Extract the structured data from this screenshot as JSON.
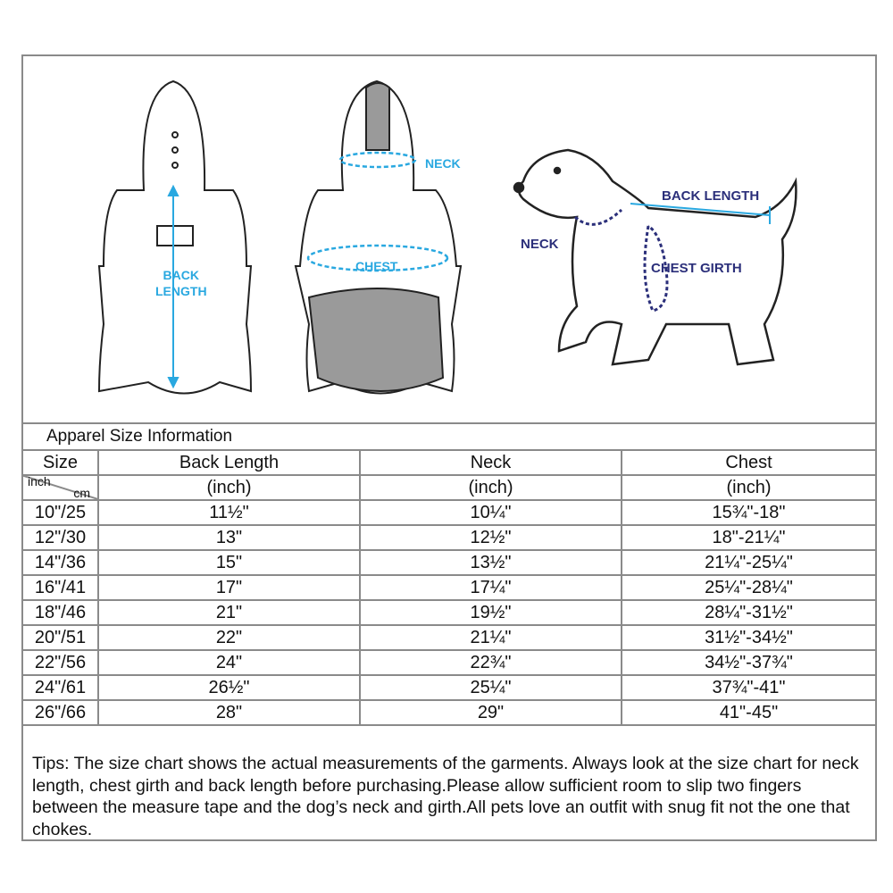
{
  "illustration": {
    "garment_labels": {
      "back_length": "BACK\nLENGTH",
      "back": "BACK",
      "length": "LENGTH",
      "neck": "NECK",
      "chest": "CHEST"
    },
    "dog_labels": {
      "back_length": "BACK LENGTH",
      "neck": "NECK",
      "chest_girth": "CHEST GIRTH"
    },
    "colors": {
      "garment_arrow": "#29a8e0",
      "dog_label": "#2b2f7a",
      "garment_fill": "#9a9a9a"
    }
  },
  "table": {
    "title": "Apparel Size Information",
    "headers": [
      "Size",
      "Back Length",
      "Neck",
      "Chest"
    ],
    "size_units": {
      "top": "inch",
      "bottom": "cm"
    },
    "units": [
      "(inch)",
      "(inch)",
      "(inch)"
    ],
    "rows": [
      [
        "10\"/25",
        "11½\"",
        "10¼\"",
        "15¾\"-18\""
      ],
      [
        "12\"/30",
        "13\"",
        "12½\"",
        "18\"-21¼\""
      ],
      [
        "14\"/36",
        "15\"",
        "13½\"",
        "21¼\"-25¼\""
      ],
      [
        "16\"/41",
        "17\"",
        "17¼\"",
        "25¼\"-28¼\""
      ],
      [
        "18\"/46",
        "21\"",
        "19½\"",
        "28¼\"-31½\""
      ],
      [
        "20\"/51",
        "22\"",
        "21¼\"",
        "31½\"-34½\""
      ],
      [
        "22\"/56",
        "24\"",
        "22¾\"",
        "34½\"-37¾\""
      ],
      [
        "24\"/61",
        "26½\"",
        "25¼\"",
        "37¾\"-41\""
      ],
      [
        "26\"/66",
        "28\"",
        "29\"",
        "41\"-45\""
      ]
    ]
  },
  "tips": "Tips:  The size chart shows the actual measurements of the  garments.  Always look at the size chart for neck length, chest girth and back length before purchasing.Please allow sufficient room to slip two fingers between the measure tape and the dog’s neck and girth.All pets love an outfit with snug fit not the one that chokes."
}
